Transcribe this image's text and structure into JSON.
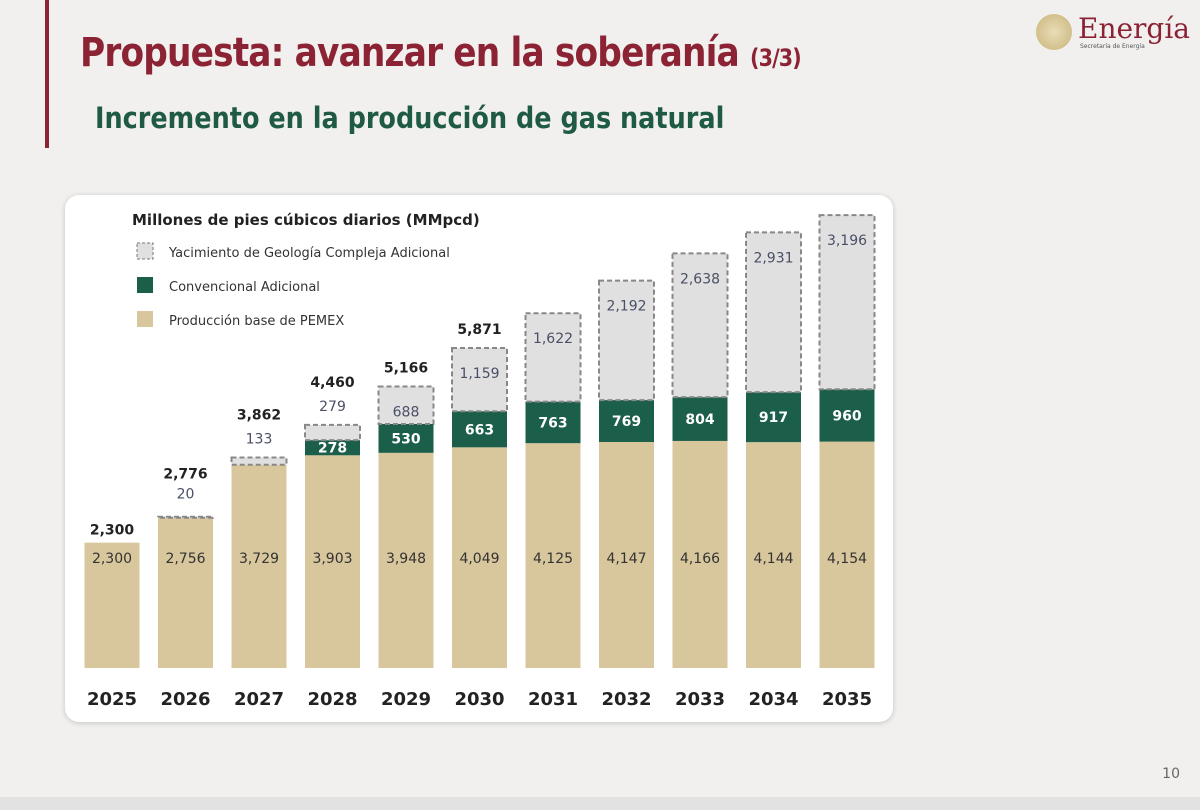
{
  "header": {
    "title": "Propuesta: avanzar en la soberanía",
    "title_suffix": "(3/3)",
    "subtitle": "Incremento en la producción de gas natural"
  },
  "logo": {
    "name": "Energía",
    "sub": "Secretaría de Energía"
  },
  "page_number": "10",
  "colors": {
    "title": "#8c2334",
    "subtitle": "#1f5a45",
    "base": "#d8c79c",
    "conventional": "#1b5e4a",
    "complex": "#e0e0e0"
  },
  "chart_data": {
    "type": "bar",
    "stacked": true,
    "title": "Millones de pies cúbicos diarios (MMpcd)",
    "legend_placement": "top-left",
    "categories": [
      "2025",
      "2026",
      "2027",
      "2028",
      "2029",
      "2030",
      "2031",
      "2032",
      "2033",
      "2034",
      "2035"
    ],
    "series": [
      {
        "name": "Producción base de PEMEX",
        "values": [
          2300,
          2756,
          3729,
          3903,
          3948,
          4049,
          4125,
          4147,
          4166,
          4144,
          4154
        ]
      },
      {
        "name": "Convencional Adicional",
        "values": [
          0,
          0,
          0,
          278,
          530,
          663,
          763,
          769,
          804,
          917,
          960
        ]
      },
      {
        "name": "Yacimiento de Geología Compleja Adicional",
        "values": [
          0,
          20,
          133,
          279,
          688,
          1159,
          1622,
          2192,
          2638,
          2931,
          3196
        ]
      }
    ],
    "totals": [
      "2,300",
      "2,776",
      "3,862",
      "4,460",
      "5,166",
      "5,871",
      null,
      null,
      null,
      null,
      null
    ],
    "grid": false
  }
}
